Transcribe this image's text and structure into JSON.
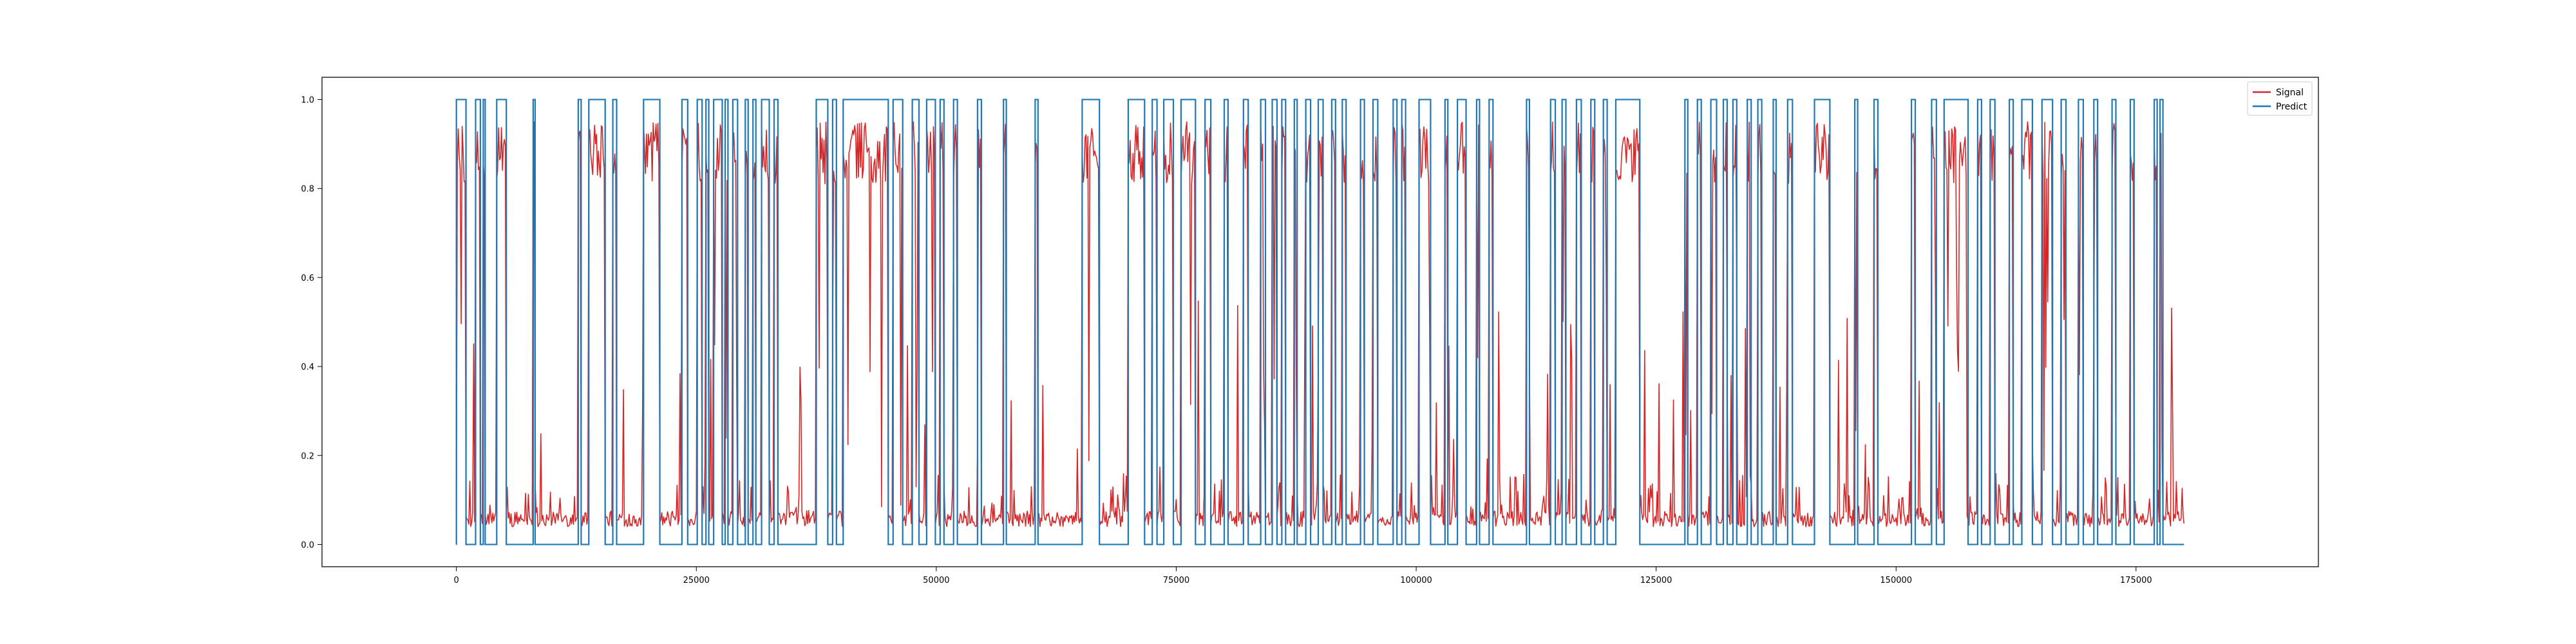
{
  "chart_data": {
    "type": "line",
    "title": "",
    "xlabel": "",
    "ylabel": "",
    "xlim": [
      -14000,
      194000
    ],
    "ylim": [
      -0.05,
      1.05
    ],
    "xticks": [
      0,
      25000,
      50000,
      75000,
      100000,
      125000,
      150000,
      175000
    ],
    "xtick_labels": [
      "0",
      "25000",
      "50000",
      "75000",
      "100000",
      "125000",
      "150000",
      "175000"
    ],
    "yticks": [
      0.0,
      0.2,
      0.4,
      0.6,
      0.8,
      1.0
    ],
    "ytick_labels": [
      "0.0",
      "0.2",
      "0.4",
      "0.6",
      "0.8",
      "1.0"
    ],
    "grid": false,
    "legend_position": "top-right",
    "x_range": [
      0,
      180000
    ],
    "series": [
      {
        "name": "Signal",
        "color": "#d62728",
        "baseline": 0.04,
        "high": 0.95,
        "sample_step": 100
      },
      {
        "name": "Predict",
        "color": "#1f77b4",
        "baseline": 0.0,
        "high": 1.0,
        "high_intervals": [
          [
            0,
            1000
          ],
          [
            2000,
            2500
          ],
          [
            2800,
            3000
          ],
          [
            4200,
            5200
          ],
          [
            8000,
            8200
          ],
          [
            12700,
            13000
          ],
          [
            13800,
            15500
          ],
          [
            16300,
            16700
          ],
          [
            19500,
            21200
          ],
          [
            23500,
            24100
          ],
          [
            25100,
            25600
          ],
          [
            26000,
            26300
          ],
          [
            26800,
            27700
          ],
          [
            28000,
            28300
          ],
          [
            28800,
            29300
          ],
          [
            30100,
            30400
          ],
          [
            30900,
            31200
          ],
          [
            31800,
            32600
          ],
          [
            33100,
            33500
          ],
          [
            37500,
            38700
          ],
          [
            39200,
            39600
          ],
          [
            40300,
            45000
          ],
          [
            45500,
            46500
          ],
          [
            47500,
            48200
          ],
          [
            49000,
            49900
          ],
          [
            50400,
            50800
          ],
          [
            51800,
            52200
          ],
          [
            54300,
            54700
          ],
          [
            57000,
            57300
          ],
          [
            60300,
            60600
          ],
          [
            65200,
            67000
          ],
          [
            70000,
            71700
          ],
          [
            72500,
            73000
          ],
          [
            73700,
            74700
          ],
          [
            75500,
            77000
          ],
          [
            78000,
            78600
          ],
          [
            80000,
            80400
          ],
          [
            82000,
            82500
          ],
          [
            83800,
            84300
          ],
          [
            85000,
            85500
          ],
          [
            86000,
            86400
          ],
          [
            87300,
            87600
          ],
          [
            88500,
            89000
          ],
          [
            89800,
            90300
          ],
          [
            91200,
            91600
          ],
          [
            92300,
            92700
          ],
          [
            94200,
            94600
          ],
          [
            95500,
            96000
          ],
          [
            97600,
            98000
          ],
          [
            98500,
            98900
          ],
          [
            100300,
            101500
          ],
          [
            103000,
            103300
          ],
          [
            104300,
            105200
          ],
          [
            106300,
            106600
          ],
          [
            107600,
            108000
          ],
          [
            111500,
            111800
          ],
          [
            114000,
            114500
          ],
          [
            115200,
            115600
          ],
          [
            116700,
            117200
          ],
          [
            118200,
            118600
          ],
          [
            119500,
            119900
          ],
          [
            120800,
            123300
          ],
          [
            128000,
            128300
          ],
          [
            129300,
            129700
          ],
          [
            130700,
            131300
          ],
          [
            132000,
            132400
          ],
          [
            133000,
            133400
          ],
          [
            134500,
            134900
          ],
          [
            135600,
            136000
          ],
          [
            137200,
            137500
          ],
          [
            138700,
            139200
          ],
          [
            141500,
            143100
          ],
          [
            145700,
            146000
          ],
          [
            147700,
            148100
          ],
          [
            151600,
            152000
          ],
          [
            153700,
            154200
          ],
          [
            155000,
            157500
          ],
          [
            158500,
            158900
          ],
          [
            159800,
            160300
          ],
          [
            161800,
            162200
          ],
          [
            163100,
            164200
          ],
          [
            165200,
            166300
          ],
          [
            167200,
            167700
          ],
          [
            169000,
            169500
          ],
          [
            170600,
            171000
          ],
          [
            172500,
            172900
          ],
          [
            174400,
            174800
          ],
          [
            176900,
            177200
          ],
          [
            177500,
            177800
          ]
        ]
      }
    ]
  }
}
